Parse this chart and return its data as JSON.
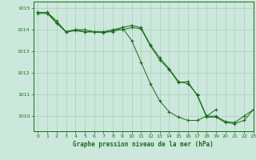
{
  "background_color": "#cce8dc",
  "grid_color": "#aaccbb",
  "line_color": "#1a6b1a",
  "xlabel": "Graphe pression niveau de la mer (hPa)",
  "xlim": [
    -0.5,
    23
  ],
  "ylim": [
    1009.3,
    1015.3
  ],
  "yticks": [
    1010,
    1011,
    1012,
    1013,
    1014,
    1015
  ],
  "xticks": [
    0,
    1,
    2,
    3,
    4,
    5,
    6,
    7,
    8,
    9,
    10,
    11,
    12,
    13,
    14,
    15,
    16,
    17,
    18,
    19,
    20,
    21,
    22,
    23
  ],
  "line1_x": [
    0,
    1,
    2,
    3,
    4,
    5,
    6,
    7,
    8,
    9,
    10,
    11,
    12,
    13,
    14,
    15,
    16,
    17,
    18,
    19,
    20,
    21,
    22,
    23
  ],
  "line1_y": [
    1014.8,
    1014.8,
    1014.4,
    1013.9,
    1014.0,
    1014.0,
    1013.9,
    1013.9,
    1013.9,
    1014.1,
    1014.2,
    1014.1,
    1013.3,
    1012.7,
    1012.2,
    1011.6,
    1011.5,
    1011.0,
    1010.0,
    1010.0,
    1009.75,
    1009.7,
    1010.0,
    1010.3
  ],
  "line2_x": [
    0,
    1,
    2,
    3,
    4,
    5,
    6,
    7,
    8,
    9,
    10,
    11,
    12,
    13,
    14,
    15,
    16,
    17,
    18,
    19
  ],
  "line2_y": [
    1014.8,
    1014.8,
    1014.3,
    1013.9,
    1014.0,
    1013.9,
    1013.9,
    1013.9,
    1014.0,
    1014.1,
    1013.5,
    1012.5,
    1011.5,
    1010.7,
    1010.2,
    1009.95,
    1009.8,
    1009.8,
    1010.0,
    1010.3
  ],
  "line3_x": [
    0,
    1,
    2,
    3,
    4,
    5,
    6,
    7,
    8,
    9,
    10,
    11,
    12,
    13,
    14,
    15,
    16,
    17,
    18,
    19,
    20,
    21,
    22,
    23
  ],
  "line3_y": [
    1014.75,
    1014.75,
    1014.3,
    1013.9,
    1013.95,
    1013.9,
    1013.9,
    1013.85,
    1013.95,
    1014.0,
    1014.1,
    1014.05,
    1013.25,
    1012.6,
    1012.15,
    1011.55,
    1011.6,
    1010.95,
    1009.95,
    1009.95,
    1009.7,
    1009.65,
    1009.8,
    1010.3
  ]
}
